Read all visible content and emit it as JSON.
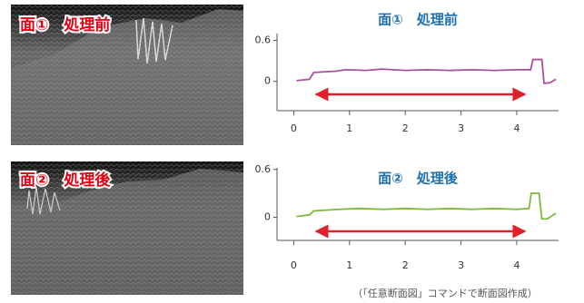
{
  "panels": [
    {
      "label": "面①　処理前"
    },
    {
      "label": "面②　処理後"
    }
  ],
  "caption": "（「任意断面図」コマンドで断面図作成）",
  "chart_data": [
    {
      "type": "line",
      "title": "面①　処理前",
      "color": "#a8519a",
      "x": [
        0.05,
        0.28,
        0.36,
        0.77,
        0.93,
        1.3,
        1.58,
        2.0,
        2.4,
        2.8,
        3.2,
        3.6,
        4.0,
        4.25,
        4.29,
        4.45,
        4.49,
        4.6,
        4.7
      ],
      "values": [
        0.01,
        0.03,
        0.13,
        0.15,
        0.17,
        0.16,
        0.18,
        0.16,
        0.17,
        0.16,
        0.17,
        0.16,
        0.17,
        0.17,
        0.32,
        0.32,
        -0.03,
        -0.02,
        0.03
      ],
      "xlim": [
        -0.3,
        4.75
      ],
      "ylim": [
        -0.43,
        0.7
      ],
      "xticks": [
        0,
        1,
        2,
        3,
        4
      ],
      "yticks": [
        0,
        0.6
      ]
    },
    {
      "type": "line",
      "title": "面②　処理後",
      "color": "#7cb83a",
      "x": [
        0.05,
        0.28,
        0.36,
        0.8,
        1.2,
        1.6,
        2.0,
        2.4,
        2.8,
        3.2,
        3.6,
        4.0,
        4.22,
        4.26,
        4.4,
        4.45,
        4.55,
        4.7
      ],
      "values": [
        0.01,
        0.03,
        0.08,
        0.1,
        0.11,
        0.1,
        0.11,
        0.1,
        0.11,
        0.1,
        0.11,
        0.1,
        0.11,
        0.3,
        0.3,
        -0.02,
        -0.02,
        0.05
      ],
      "xlim": [
        -0.3,
        4.75
      ],
      "ylim": [
        -0.29,
        0.62
      ],
      "xticks": [
        0,
        1,
        2,
        3,
        4
      ],
      "yticks": [
        0,
        0.6
      ]
    }
  ]
}
